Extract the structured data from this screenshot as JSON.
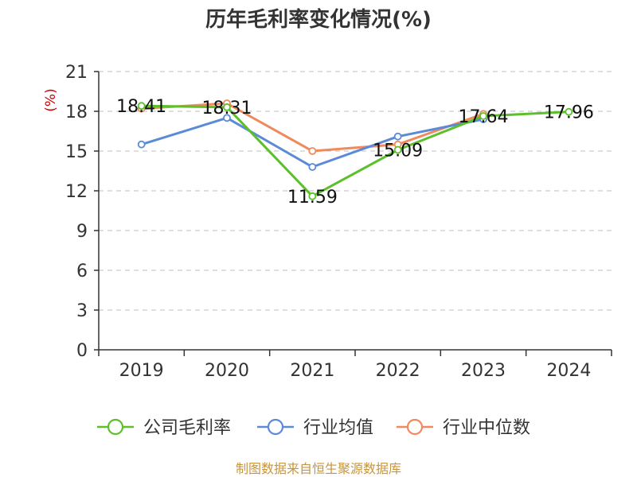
{
  "chart_data": {
    "type": "line",
    "title": "历年毛利率变化情况(%)",
    "ylabel": "(%)",
    "categories": [
      "2019",
      "2020",
      "2021",
      "2022",
      "2023",
      "2024"
    ],
    "ylim": [
      0,
      21
    ],
    "yticks": [
      "0",
      "3",
      "6",
      "9",
      "12",
      "15",
      "18",
      "21"
    ],
    "grid": true,
    "legend_position": "bottom",
    "series": [
      {
        "name": "公司毛利率",
        "color": "#5cc02b",
        "values": [
          18.41,
          18.31,
          11.59,
          15.09,
          17.64,
          17.96
        ],
        "labels": [
          "18.41",
          "18.31",
          "11.59",
          "15.09",
          "17.64",
          "17.96"
        ]
      },
      {
        "name": "行业均值",
        "color": "#5b8ad8",
        "values": [
          15.5,
          17.5,
          13.8,
          16.1,
          17.4,
          null
        ]
      },
      {
        "name": "行业中位数",
        "color": "#f08a5d",
        "values": [
          18.2,
          18.6,
          15.0,
          15.5,
          17.8,
          null
        ]
      }
    ]
  },
  "source": "制图数据来自恒生聚源数据库"
}
